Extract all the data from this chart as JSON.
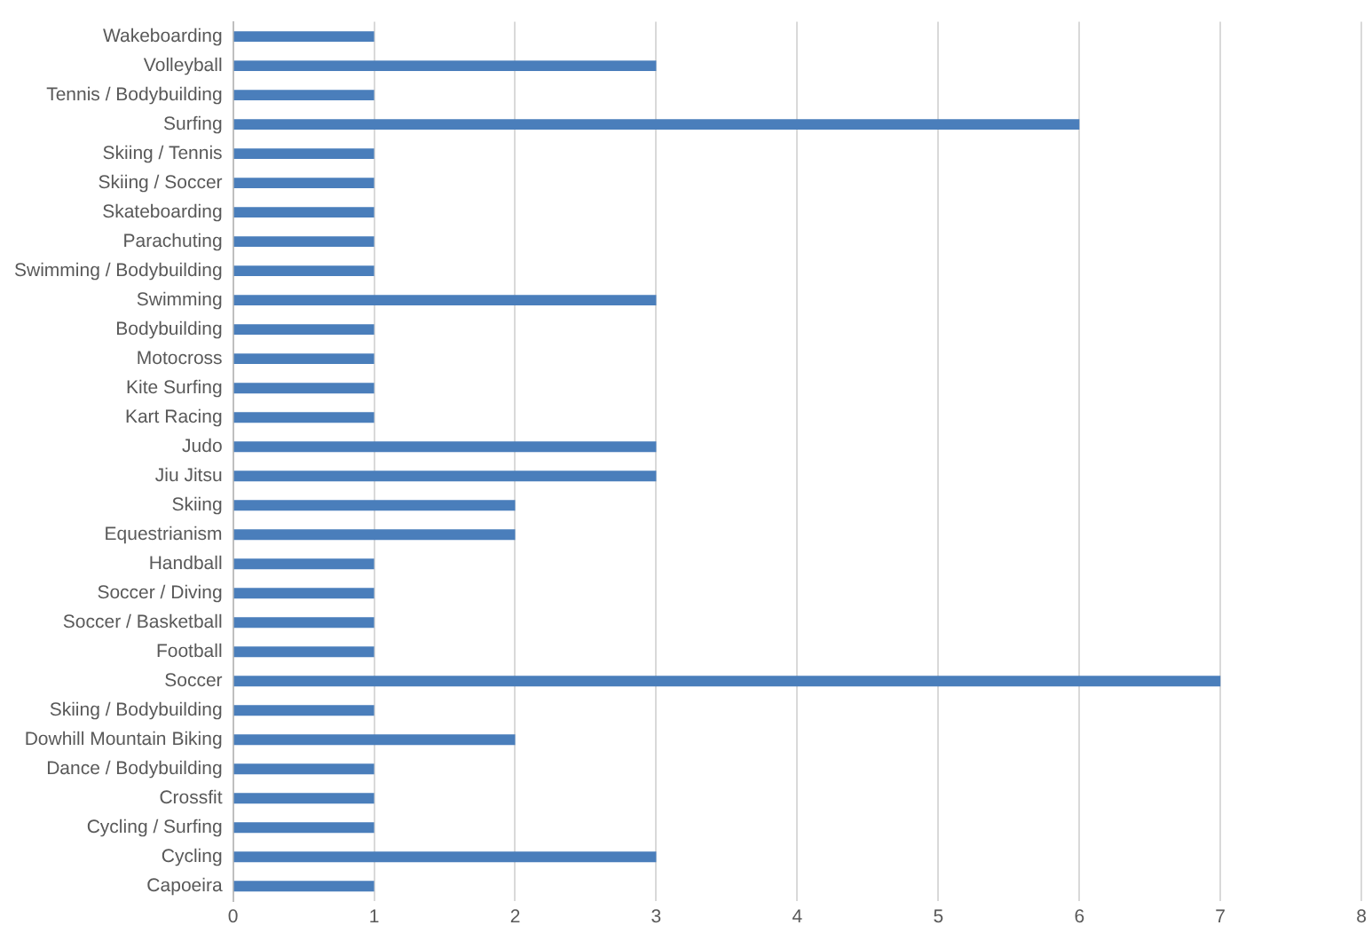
{
  "chart_data": {
    "type": "bar",
    "orientation": "horizontal",
    "categories": [
      "Wakeboarding",
      "Volleyball",
      "Tennis / Bodybuilding",
      "Surfing",
      "Skiing / Tennis",
      "Skiing / Soccer",
      "Skateboarding",
      "Parachuting",
      "Swimming / Bodybuilding",
      "Swimming",
      "Bodybuilding",
      "Motocross",
      "Kite Surfing",
      "Kart Racing",
      "Judo",
      "Jiu Jitsu",
      "Skiing",
      "Equestrianism",
      "Handball",
      "Soccer / Diving",
      "Soccer / Basketball",
      "Football",
      "Soccer",
      "Skiing / Bodybuilding",
      "Dowhill Mountain Biking",
      "Dance / Bodybuilding",
      "Crossfit",
      "Cycling / Surfing",
      "Cycling",
      "Capoeira"
    ],
    "values": [
      1,
      3,
      1,
      6,
      1,
      1,
      1,
      1,
      1,
      3,
      1,
      1,
      1,
      1,
      3,
      3,
      2,
      2,
      1,
      1,
      1,
      1,
      7,
      1,
      2,
      1,
      1,
      1,
      3,
      1
    ],
    "color": "#4a7ebb",
    "xlim": [
      0,
      8
    ],
    "xticks": [
      0,
      1,
      2,
      3,
      4,
      5,
      6,
      7,
      8
    ],
    "grid": "x"
  }
}
